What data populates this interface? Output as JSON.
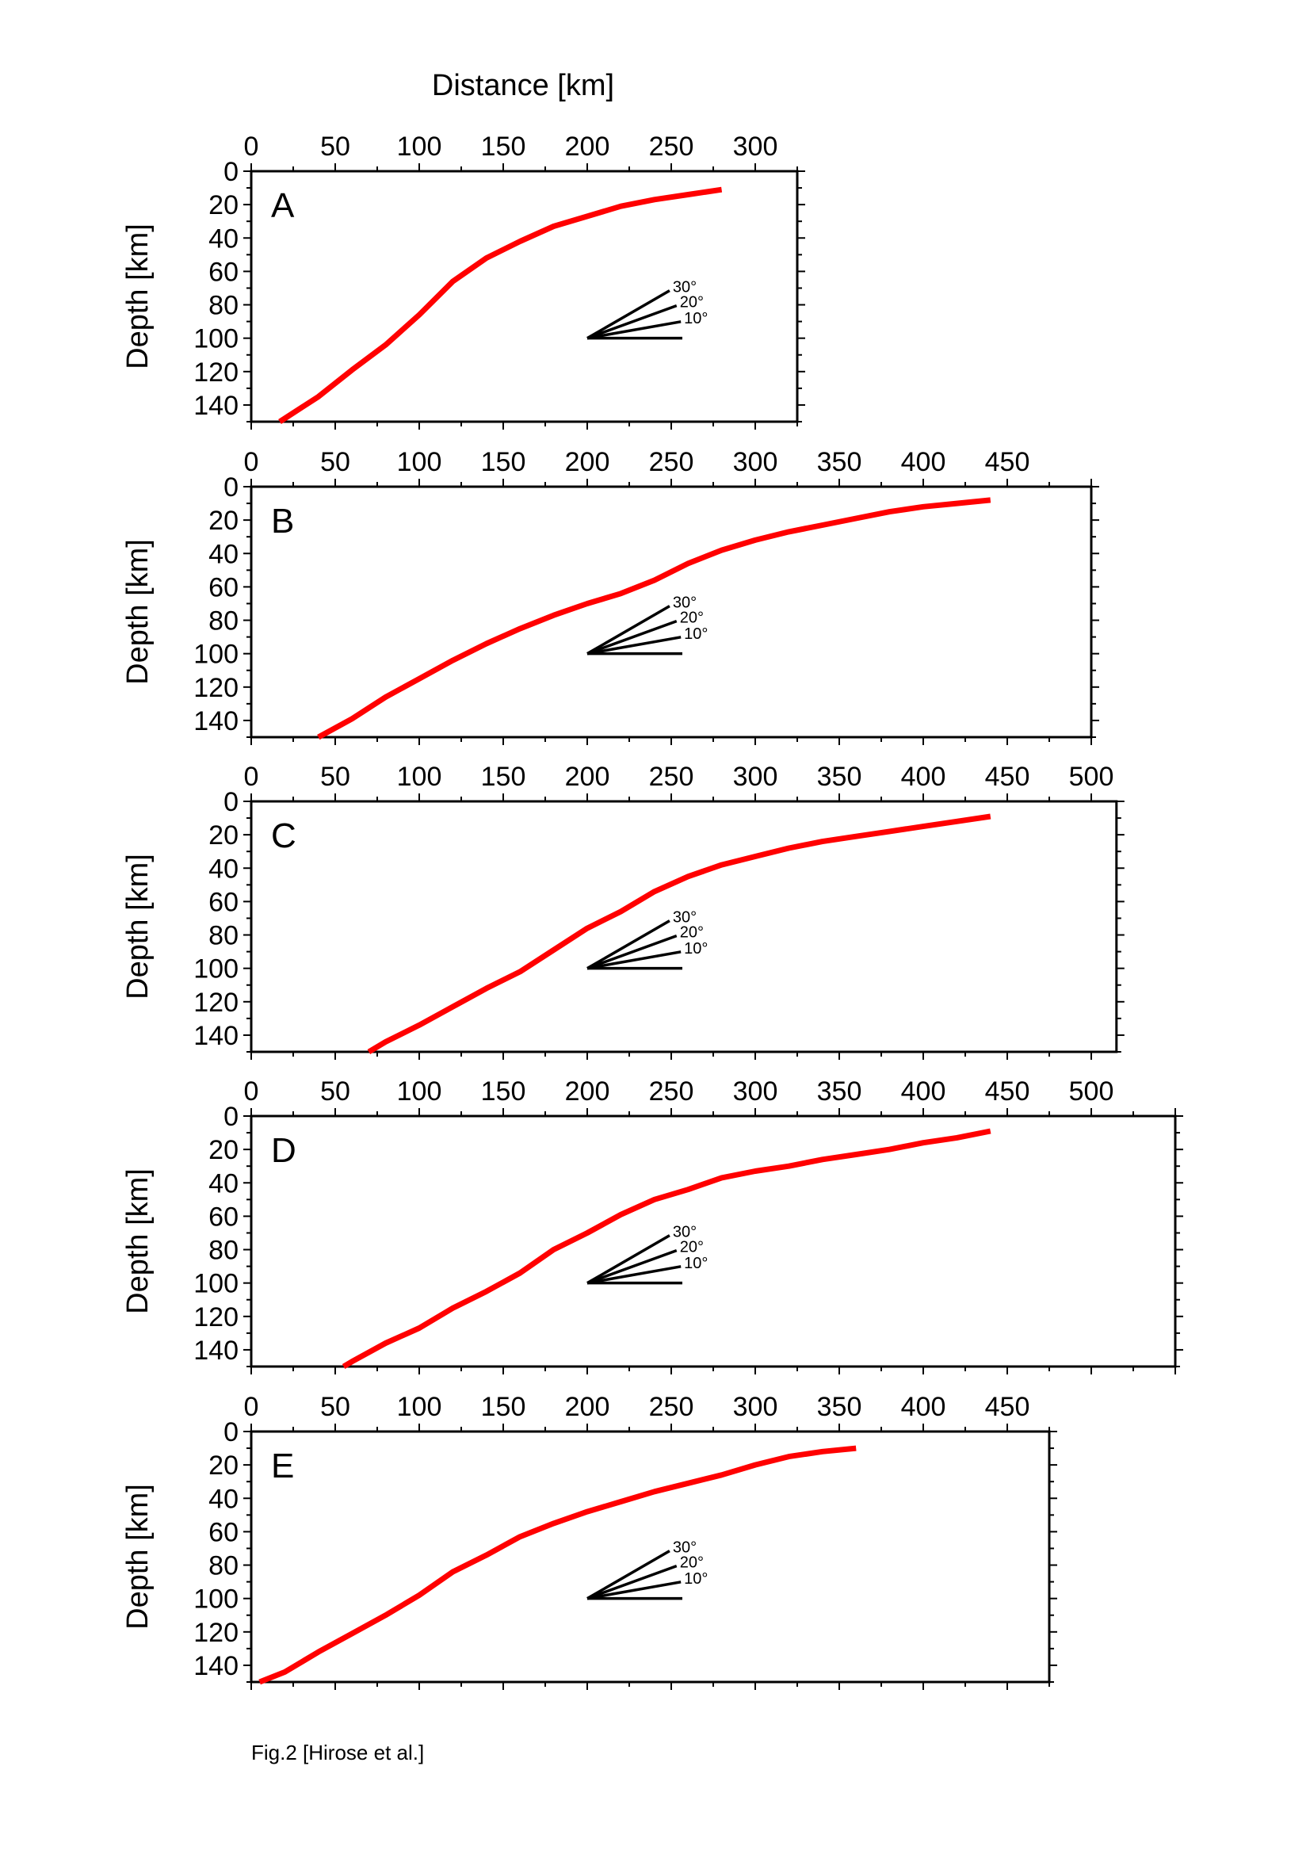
{
  "figure": {
    "top_xlabel": "Distance [km]",
    "caption": "Fig.2 [Hirose et al.]",
    "angle_labels": [
      "30°",
      "20°",
      "10°"
    ]
  },
  "colors": {
    "profile": "#ff0000",
    "axes": "#000000"
  },
  "chart_data": [
    {
      "type": "line",
      "panel": "A",
      "ylabel": "Depth [km]",
      "xlim": [
        0,
        325
      ],
      "ylim": [
        150,
        0
      ],
      "x_ticks": [
        0,
        50,
        100,
        150,
        200,
        250,
        300
      ],
      "y_ticks": [
        0,
        20,
        40,
        60,
        80,
        100,
        120,
        140
      ],
      "series": [
        {
          "x": [
            17,
            40,
            60,
            80,
            100,
            120,
            140,
            160,
            180,
            200,
            220,
            240,
            260,
            280
          ],
          "y": [
            150,
            135,
            119,
            104,
            86,
            66,
            52,
            42,
            33,
            27,
            21,
            17,
            14,
            11
          ]
        }
      ]
    },
    {
      "type": "line",
      "panel": "B",
      "ylabel": "Depth [km]",
      "xlim": [
        0,
        500
      ],
      "ylim": [
        150,
        0
      ],
      "x_ticks": [
        0,
        50,
        100,
        150,
        200,
        250,
        300,
        350,
        400,
        450
      ],
      "y_ticks": [
        0,
        20,
        40,
        60,
        80,
        100,
        120,
        140
      ],
      "series": [
        {
          "x": [
            40,
            60,
            80,
            100,
            120,
            140,
            160,
            180,
            200,
            220,
            240,
            260,
            280,
            300,
            320,
            340,
            360,
            380,
            400,
            420,
            440
          ],
          "y": [
            150,
            139,
            126,
            115,
            104,
            94,
            85,
            77,
            70,
            64,
            56,
            46,
            38,
            32,
            27,
            23,
            19,
            15,
            12,
            10,
            8
          ]
        }
      ]
    },
    {
      "type": "line",
      "panel": "C",
      "ylabel": "Depth [km]",
      "xlim": [
        0,
        515
      ],
      "ylim": [
        150,
        0
      ],
      "x_ticks": [
        0,
        50,
        100,
        150,
        200,
        250,
        300,
        350,
        400,
        450,
        500
      ],
      "y_ticks": [
        0,
        20,
        40,
        60,
        80,
        100,
        120,
        140
      ],
      "series": [
        {
          "x": [
            70,
            80,
            100,
            120,
            140,
            160,
            180,
            200,
            220,
            240,
            260,
            280,
            300,
            320,
            340,
            360,
            380,
            400,
            420,
            440
          ],
          "y": [
            150,
            144,
            134,
            123,
            112,
            102,
            89,
            76,
            66,
            54,
            45,
            38,
            33,
            28,
            24,
            21,
            18,
            15,
            12,
            9
          ]
        }
      ]
    },
    {
      "type": "line",
      "panel": "D",
      "ylabel": "Depth [km]",
      "xlim": [
        0,
        550
      ],
      "ylim": [
        150,
        0
      ],
      "x_ticks": [
        0,
        50,
        100,
        150,
        200,
        250,
        300,
        350,
        400,
        450,
        500
      ],
      "y_ticks": [
        0,
        20,
        40,
        60,
        80,
        100,
        120,
        140
      ],
      "series": [
        {
          "x": [
            55,
            60,
            80,
            100,
            120,
            140,
            160,
            180,
            200,
            220,
            240,
            260,
            280,
            300,
            320,
            340,
            360,
            380,
            400,
            420,
            440
          ],
          "y": [
            150,
            147,
            136,
            127,
            115,
            105,
            94,
            80,
            70,
            59,
            50,
            44,
            37,
            33,
            30,
            26,
            23,
            20,
            16,
            13,
            9
          ]
        }
      ]
    },
    {
      "type": "line",
      "panel": "E",
      "ylabel": "Depth [km]",
      "xlim": [
        0,
        475
      ],
      "ylim": [
        150,
        0
      ],
      "x_ticks": [
        0,
        50,
        100,
        150,
        200,
        250,
        300,
        350,
        400,
        450
      ],
      "y_ticks": [
        0,
        20,
        40,
        60,
        80,
        100,
        120,
        140
      ],
      "series": [
        {
          "x": [
            5,
            20,
            40,
            60,
            80,
            100,
            120,
            140,
            160,
            180,
            200,
            220,
            240,
            260,
            280,
            300,
            320,
            340,
            360
          ],
          "y": [
            150,
            144,
            132,
            121,
            110,
            98,
            84,
            74,
            63,
            55,
            48,
            42,
            36,
            31,
            26,
            20,
            15,
            12,
            10
          ]
        }
      ]
    }
  ]
}
